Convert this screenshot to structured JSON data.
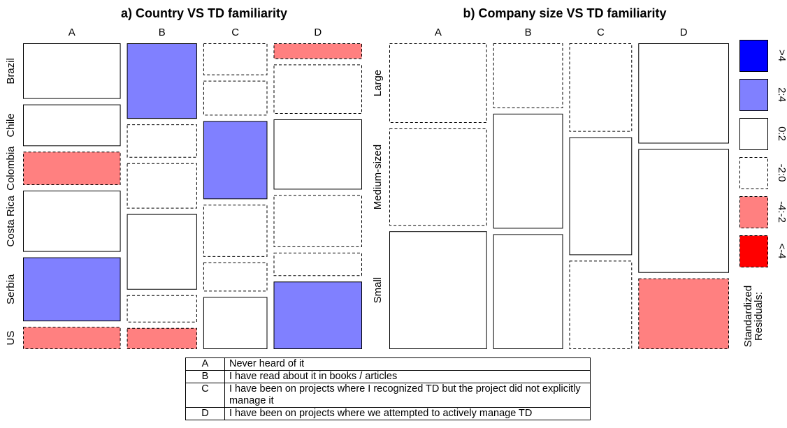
{
  "chart_data": [
    {
      "type": "mosaic",
      "title": "a) Country VS TD familiarity",
      "columns": [
        "A",
        "B",
        "C",
        "D"
      ],
      "rows": [
        "Brazil",
        "Chile",
        "Colombia",
        "Costa Rica",
        "Serbia",
        "US"
      ],
      "column_proportions": [
        0.32,
        0.23,
        0.21,
        0.29
      ],
      "cell_proportions": [
        [
          0.2,
          0.15,
          0.12,
          0.22,
          0.23,
          0.08
        ],
        [
          0.25,
          0.11,
          0.15,
          0.25,
          0.09,
          0.07
        ],
        [
          0.11,
          0.12,
          0.27,
          0.18,
          0.1,
          0.18
        ],
        [
          0.06,
          0.19,
          0.27,
          0.2,
          0.09,
          0.26
        ]
      ],
      "residual_class": [
        [
          "0:2",
          "0:2",
          "-4:-2",
          "0:2",
          "2:4",
          "-4:-2"
        ],
        [
          "2:4",
          "-2:0",
          "-2:0",
          "0:2",
          "-2:0",
          "-4:-2"
        ],
        [
          "-2:0",
          "-2:0",
          "2:4",
          "-2:0",
          "-2:0",
          "0:2"
        ],
        [
          "-4:-2",
          "-2:0",
          "0:2",
          "-2:0",
          "-2:0",
          "2:4"
        ]
      ]
    },
    {
      "type": "mosaic",
      "title": "b) Company size VS TD familiarity",
      "columns": [
        "A",
        "B",
        "C",
        "D"
      ],
      "rows": [
        "Large",
        "Medium-sized",
        "Small"
      ],
      "column_proportions": [
        0.28,
        0.2,
        0.18,
        0.26
      ],
      "cell_proportions": [
        [
          0.27,
          0.33,
          0.4
        ],
        [
          0.22,
          0.39,
          0.39
        ],
        [
          0.3,
          0.4,
          0.3
        ],
        [
          0.34,
          0.42,
          0.24
        ]
      ],
      "residual_class": [
        [
          "-2:0",
          "-2:0",
          "0:2"
        ],
        [
          "-2:0",
          "0:2",
          "0:2"
        ],
        [
          "-2:0",
          "0:2",
          "-2:0"
        ],
        [
          "0:2",
          "0:2",
          "-4:-2"
        ]
      ]
    }
  ],
  "residual_legend": {
    "title_lines": [
      "Standardized",
      "Residuals:"
    ],
    "items": [
      {
        "label": ">4",
        "fill": "#0000ff",
        "dashed": false
      },
      {
        "label": "2:4",
        "fill": "#8080ff",
        "dashed": false
      },
      {
        "label": "0:2",
        "fill": "#ffffff",
        "dashed": false
      },
      {
        "label": "-2:0",
        "fill": "#ffffff",
        "dashed": true
      },
      {
        "label": "-4:-2",
        "fill": "#ff8080",
        "dashed": true
      },
      {
        "label": "<-4",
        "fill": "#ff0000",
        "dashed": true
      }
    ]
  },
  "key_table": [
    {
      "key": "A",
      "text": "Never heard of it"
    },
    {
      "key": "B",
      "text": "I have read about it in books / articles"
    },
    {
      "key": "C",
      "text": "I have been on projects where I recognized TD but the project did not explicitly manage it"
    },
    {
      "key": "D",
      "text": "I have been on projects where we attempted to actively manage TD"
    }
  ]
}
